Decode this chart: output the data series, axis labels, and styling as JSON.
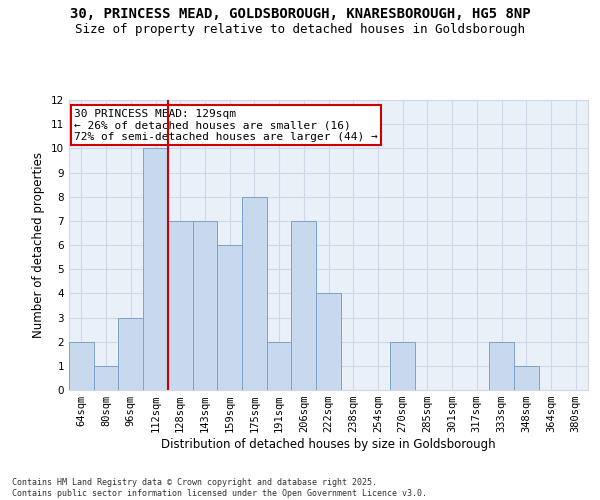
{
  "title_line1": "30, PRINCESS MEAD, GOLDSBOROUGH, KNARESBOROUGH, HG5 8NP",
  "title_line2": "Size of property relative to detached houses in Goldsborough",
  "xlabel": "Distribution of detached houses by size in Goldsborough",
  "ylabel": "Number of detached properties",
  "categories": [
    "64sqm",
    "80sqm",
    "96sqm",
    "112sqm",
    "128sqm",
    "143sqm",
    "159sqm",
    "175sqm",
    "191sqm",
    "206sqm",
    "222sqm",
    "238sqm",
    "254sqm",
    "270sqm",
    "285sqm",
    "301sqm",
    "317sqm",
    "333sqm",
    "348sqm",
    "364sqm",
    "380sqm"
  ],
  "values": [
    2,
    1,
    3,
    10,
    7,
    7,
    6,
    8,
    2,
    7,
    4,
    0,
    0,
    2,
    0,
    0,
    0,
    2,
    1,
    0,
    0
  ],
  "bar_color": "#c9d9ed",
  "bar_edge_color": "#7ba3cc",
  "vline_index": 4,
  "vline_color": "#cc0000",
  "annotation_text": "30 PRINCESS MEAD: 129sqm\n← 26% of detached houses are smaller (16)\n72% of semi-detached houses are larger (44) →",
  "annotation_box_color": "#cc0000",
  "ylim": [
    0,
    12
  ],
  "yticks": [
    0,
    1,
    2,
    3,
    4,
    5,
    6,
    7,
    8,
    9,
    10,
    11,
    12
  ],
  "grid_color": "#d0d8e8",
  "background_color": "#eaf0f8",
  "footer_text": "Contains HM Land Registry data © Crown copyright and database right 2025.\nContains public sector information licensed under the Open Government Licence v3.0.",
  "title_fontsize": 10,
  "title2_fontsize": 9,
  "axis_label_fontsize": 8.5,
  "tick_fontsize": 7.5,
  "annotation_fontsize": 8,
  "footer_fontsize": 6
}
